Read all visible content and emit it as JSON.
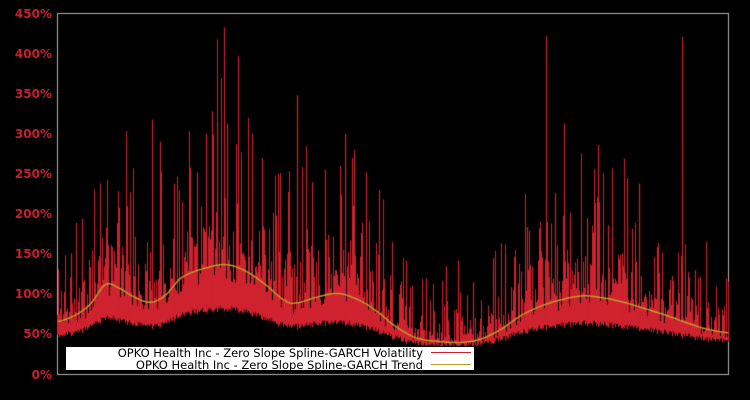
{
  "figure": {
    "background": "#000000",
    "plot_border_color": "#b3b3b3"
  },
  "chart_data": {
    "type": "line",
    "title": "",
    "xlabel": "",
    "ylabel": "",
    "x_axis": {
      "tick_labels_visible": false
    },
    "y_axis": {
      "min": 0,
      "max": 450,
      "tick_step": 50,
      "unit": "%",
      "tick_labels": [
        "450%",
        "400%",
        "350%",
        "300%",
        "250%",
        "200%",
        "150%",
        "100%",
        "50%",
        "0%"
      ],
      "tick_label_color": "#c81e2e"
    },
    "legend": {
      "position": "lower-left-inside",
      "background": "#ffffff",
      "border_color": "#000000",
      "text_color": "#000000"
    },
    "series": [
      {
        "name": "OPKO Health Inc - Zero Slope Spline-GARCH Volatility",
        "color": "#cf222f",
        "style": "spiky-line",
        "unit": "%",
        "envelope": {
          "base_trend_multiple": 0.47,
          "base_offset_pct": 18,
          "noise_seed": 11
        },
        "major_spikes": [
          [
            0.0209,
            151
          ],
          [
            0.0373,
            194
          ],
          [
            0.0641,
            223
          ],
          [
            0.0924,
            208
          ],
          [
            0.1043,
            210
          ],
          [
            0.1416,
            318
          ],
          [
            0.1535,
            290
          ],
          [
            0.1744,
            238
          ],
          [
            0.1982,
            258
          ],
          [
            0.2087,
            252
          ],
          [
            0.2221,
            300
          ],
          [
            0.231,
            328
          ],
          [
            0.2385,
            315
          ],
          [
            0.2489,
            433
          ],
          [
            0.2534,
            313
          ],
          [
            0.2698,
            397
          ],
          [
            0.2906,
            300
          ],
          [
            0.3055,
            270
          ],
          [
            0.3294,
            250
          ],
          [
            0.3577,
            348
          ],
          [
            0.3801,
            240
          ],
          [
            0.3994,
            255
          ],
          [
            0.4293,
            300
          ],
          [
            0.4397,
            270
          ],
          [
            0.4605,
            252
          ],
          [
            0.4799,
            230
          ],
          [
            0.4993,
            165
          ],
          [
            0.5201,
            142
          ],
          [
            0.5499,
            120
          ],
          [
            0.5797,
            135
          ],
          [
            0.5976,
            142
          ],
          [
            0.62,
            115
          ],
          [
            0.6498,
            145
          ],
          [
            0.6677,
            150
          ],
          [
            0.7004,
            184
          ],
          [
            0.7288,
            422
          ],
          [
            0.7422,
            226
          ],
          [
            0.7556,
            313
          ],
          [
            0.7645,
            202
          ],
          [
            0.7899,
            195
          ],
          [
            0.8063,
            286
          ],
          [
            0.8212,
            186
          ],
          [
            0.8271,
            172
          ],
          [
            0.842,
            151
          ],
          [
            0.8495,
            245
          ],
          [
            0.8674,
            238
          ],
          [
            0.8942,
            159
          ],
          [
            0.9166,
            123
          ],
          [
            0.9315,
            421
          ],
          [
            0.9508,
            130
          ],
          [
            0.9702,
            90
          ]
        ]
      },
      {
        "name": "OPKO Health Inc - Zero Slope Spline-GARCH Trend",
        "color": "#c09a2c",
        "style": "smooth-line",
        "unit": "%",
        "points": [
          [
            0.0,
            66
          ],
          [
            0.0268,
            74
          ],
          [
            0.0492,
            88
          ],
          [
            0.0715,
            112
          ],
          [
            0.0909,
            108
          ],
          [
            0.1133,
            97
          ],
          [
            0.1386,
            90
          ],
          [
            0.1609,
            99
          ],
          [
            0.1833,
            120
          ],
          [
            0.2131,
            131
          ],
          [
            0.2504,
            137
          ],
          [
            0.2802,
            129
          ],
          [
            0.31,
            112
          ],
          [
            0.3398,
            92
          ],
          [
            0.3547,
            89
          ],
          [
            0.3845,
            96
          ],
          [
            0.4188,
            101
          ],
          [
            0.4486,
            93
          ],
          [
            0.4739,
            80
          ],
          [
            0.5037,
            60
          ],
          [
            0.5335,
            46
          ],
          [
            0.5633,
            41.5
          ],
          [
            0.6006,
            40
          ],
          [
            0.6304,
            44
          ],
          [
            0.6602,
            56
          ],
          [
            0.69,
            73
          ],
          [
            0.7198,
            85
          ],
          [
            0.7496,
            93
          ],
          [
            0.7824,
            98
          ],
          [
            0.8092,
            96
          ],
          [
            0.839,
            91
          ],
          [
            0.8763,
            82
          ],
          [
            0.9061,
            74
          ],
          [
            0.9359,
            65
          ],
          [
            0.9657,
            57
          ],
          [
            1.0,
            52
          ]
        ]
      }
    ]
  }
}
